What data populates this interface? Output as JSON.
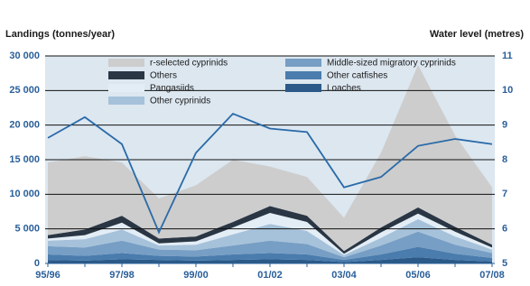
{
  "chart_data": {
    "type": "area",
    "stacked": true,
    "ylabel": "Landings (tonnes/year)",
    "y2label": "Water level (metres)",
    "categories": [
      "95/96",
      null,
      "97/98",
      null,
      "99/00",
      null,
      "01/02",
      null,
      "03/04",
      null,
      "05/06",
      null,
      "07/08"
    ],
    "ylim": [
      0,
      30000
    ],
    "yticks": [
      0,
      {
        "value": 5000,
        "label": "5 000"
      },
      {
        "value": 10000,
        "label": "10 000"
      },
      {
        "value": 15000,
        "label": "15 000"
      },
      {
        "value": 20000,
        "label": "20 000"
      },
      {
        "value": 25000,
        "label": "25 000"
      },
      {
        "value": 30000,
        "label": "30 000"
      }
    ],
    "y2lim": [
      5,
      11
    ],
    "y2ticks": [
      5,
      6,
      7,
      8,
      9,
      10,
      11
    ],
    "grid": true,
    "legend": "top",
    "series": [
      {
        "name": "Loaches",
        "color": "#2b5a88",
        "values": [
          500,
          400,
          600,
          500,
          400,
          500,
          600,
          500,
          200,
          500,
          900,
          500,
          300
        ]
      },
      {
        "name": "Other catfishes",
        "color": "#4a7cad",
        "values": [
          800,
          700,
          900,
          600,
          600,
          800,
          900,
          800,
          300,
          800,
          1500,
          900,
          500
        ]
      },
      {
        "name": "Middle-sized migratory cyprinids",
        "color": "#779ec4",
        "values": [
          1200,
          1200,
          1800,
          900,
          900,
          1300,
          1800,
          1500,
          400,
          1300,
          2200,
          1300,
          700
        ]
      },
      {
        "name": "Other cyprinids",
        "color": "#a6c2da",
        "values": [
          800,
          1200,
          1600,
          600,
          800,
          1600,
          2400,
          1900,
          300,
          1100,
          1800,
          1200,
          500
        ]
      },
      {
        "name": "Pangasiids",
        "color": "#e3edf6",
        "values": [
          300,
          600,
          1000,
          300,
          500,
          1000,
          1600,
          1300,
          200,
          800,
          800,
          700,
          300
        ]
      },
      {
        "name": "Others",
        "color": "#2a3644",
        "values": [
          500,
          800,
          1000,
          700,
          700,
          800,
          1000,
          900,
          400,
          700,
          900,
          700,
          400
        ]
      },
      {
        "name": "r-selected cyprinids",
        "color": "#cdcdcd",
        "values": [
          10500,
          10600,
          7700,
          5800,
          7400,
          9000,
          5700,
          5600,
          4800,
          10800,
          20600,
          13200,
          8300
        ]
      },
      {
        "type": "line",
        "axis": "y2",
        "color": "#2a6aa8",
        "values": [
          8.63,
          9.23,
          8.45,
          5.9,
          8.2,
          9.33,
          8.9,
          8.8,
          7.2,
          7.5,
          8.4,
          8.6,
          8.45
        ]
      }
    ]
  }
}
